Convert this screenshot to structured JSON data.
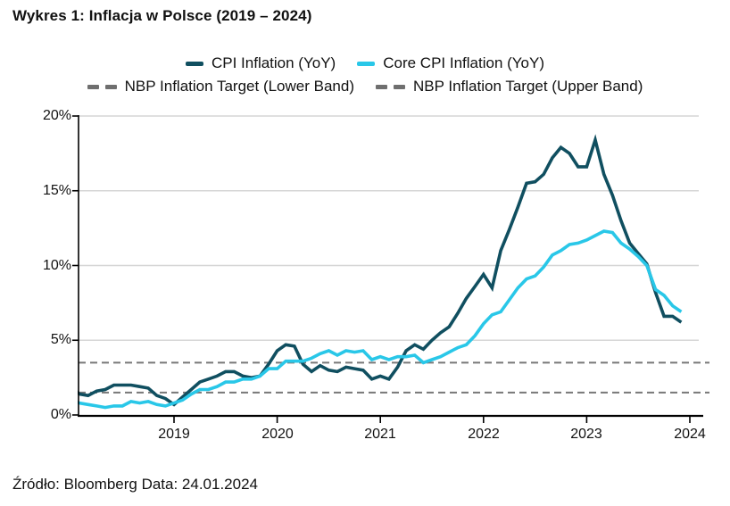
{
  "title": "Wykres 1: Inflacja w Polsce (2019 – 2024)",
  "source_note": "Źródło: Bloomberg Data: 24.01.2024",
  "colors": {
    "cpi_line": "#104f60",
    "core_line": "#29c7e8",
    "target_line": "#787878",
    "legend_dash": "#6f6f6f",
    "gridline": "#d6d6d6",
    "axis": "#000000",
    "text": "#111111"
  },
  "legend": {
    "items": [
      {
        "label": "CPI Inflation (YoY)",
        "style": "solid",
        "color_key": "cpi_line"
      },
      {
        "label": "Core CPI Inflation (YoY)",
        "style": "solid",
        "color_key": "core_line"
      },
      {
        "label": "NBP Inflation Target (Lower Band)",
        "style": "dashed",
        "color_key": "legend_dash"
      },
      {
        "label": "NBP Inflation Target (Upper Band)",
        "style": "dashed",
        "color_key": "legend_dash"
      }
    ]
  },
  "chart_data": {
    "type": "line",
    "title": "Wykres 1: Inflacja w Polsce (2019 – 2024)",
    "x_monthly_start": "2018-01",
    "x_monthly_end": "2023-12",
    "x_tick_labels": [
      "2019",
      "2020",
      "2021",
      "2022",
      "2023",
      "2024"
    ],
    "y_tick_labels": [
      "0%",
      "5%",
      "10%",
      "15%",
      "20%"
    ],
    "y_tick_values": [
      0,
      5,
      10,
      15,
      20
    ],
    "y_gridline_values": [
      5,
      10,
      15,
      20
    ],
    "ylim": [
      0,
      20
    ],
    "ylabel": "",
    "xlabel": "",
    "grid": "horizontal",
    "legend_position": "top-center",
    "nbp_target_lower_pct": 1.5,
    "nbp_target_upper_pct": 3.5,
    "series": [
      {
        "name": "CPI Inflation (YoY)",
        "color_key": "cpi_line",
        "values": [
          1.9,
          1.4,
          1.3,
          1.6,
          1.7,
          2.0,
          2.0,
          2.0,
          1.9,
          1.8,
          1.3,
          1.1,
          0.7,
          1.2,
          1.7,
          2.2,
          2.4,
          2.6,
          2.9,
          2.9,
          2.6,
          2.5,
          2.6,
          3.4,
          4.3,
          4.7,
          4.6,
          3.4,
          2.9,
          3.3,
          3.0,
          2.9,
          3.2,
          3.1,
          3.0,
          2.4,
          2.6,
          2.4,
          3.2,
          4.3,
          4.7,
          4.4,
          5.0,
          5.5,
          5.9,
          6.8,
          7.8,
          8.6,
          9.4,
          8.5,
          11.0,
          12.4,
          13.9,
          15.5,
          15.6,
          16.1,
          17.2,
          17.9,
          17.5,
          16.6,
          16.6,
          18.4,
          16.1,
          14.7,
          13.0,
          11.5,
          10.8,
          10.1,
          8.2,
          6.6,
          6.6,
          6.2
        ]
      },
      {
        "name": "Core CPI Inflation (YoY)",
        "color_key": "core_line",
        "values": [
          1.0,
          0.8,
          0.7,
          0.6,
          0.5,
          0.6,
          0.6,
          0.9,
          0.8,
          0.9,
          0.7,
          0.6,
          0.8,
          1.0,
          1.4,
          1.7,
          1.7,
          1.9,
          2.2,
          2.2,
          2.4,
          2.4,
          2.6,
          3.1,
          3.1,
          3.6,
          3.6,
          3.6,
          3.8,
          4.1,
          4.3,
          4.0,
          4.3,
          4.2,
          4.3,
          3.7,
          3.9,
          3.7,
          3.9,
          3.9,
          4.0,
          3.5,
          3.7,
          3.9,
          4.2,
          4.5,
          4.7,
          5.3,
          6.1,
          6.7,
          6.9,
          7.7,
          8.5,
          9.1,
          9.3,
          9.9,
          10.7,
          11.0,
          11.4,
          11.5,
          11.7,
          12.0,
          12.3,
          12.2,
          11.5,
          11.1,
          10.6,
          10.0,
          8.4,
          8.0,
          7.3,
          6.9
        ]
      }
    ]
  }
}
